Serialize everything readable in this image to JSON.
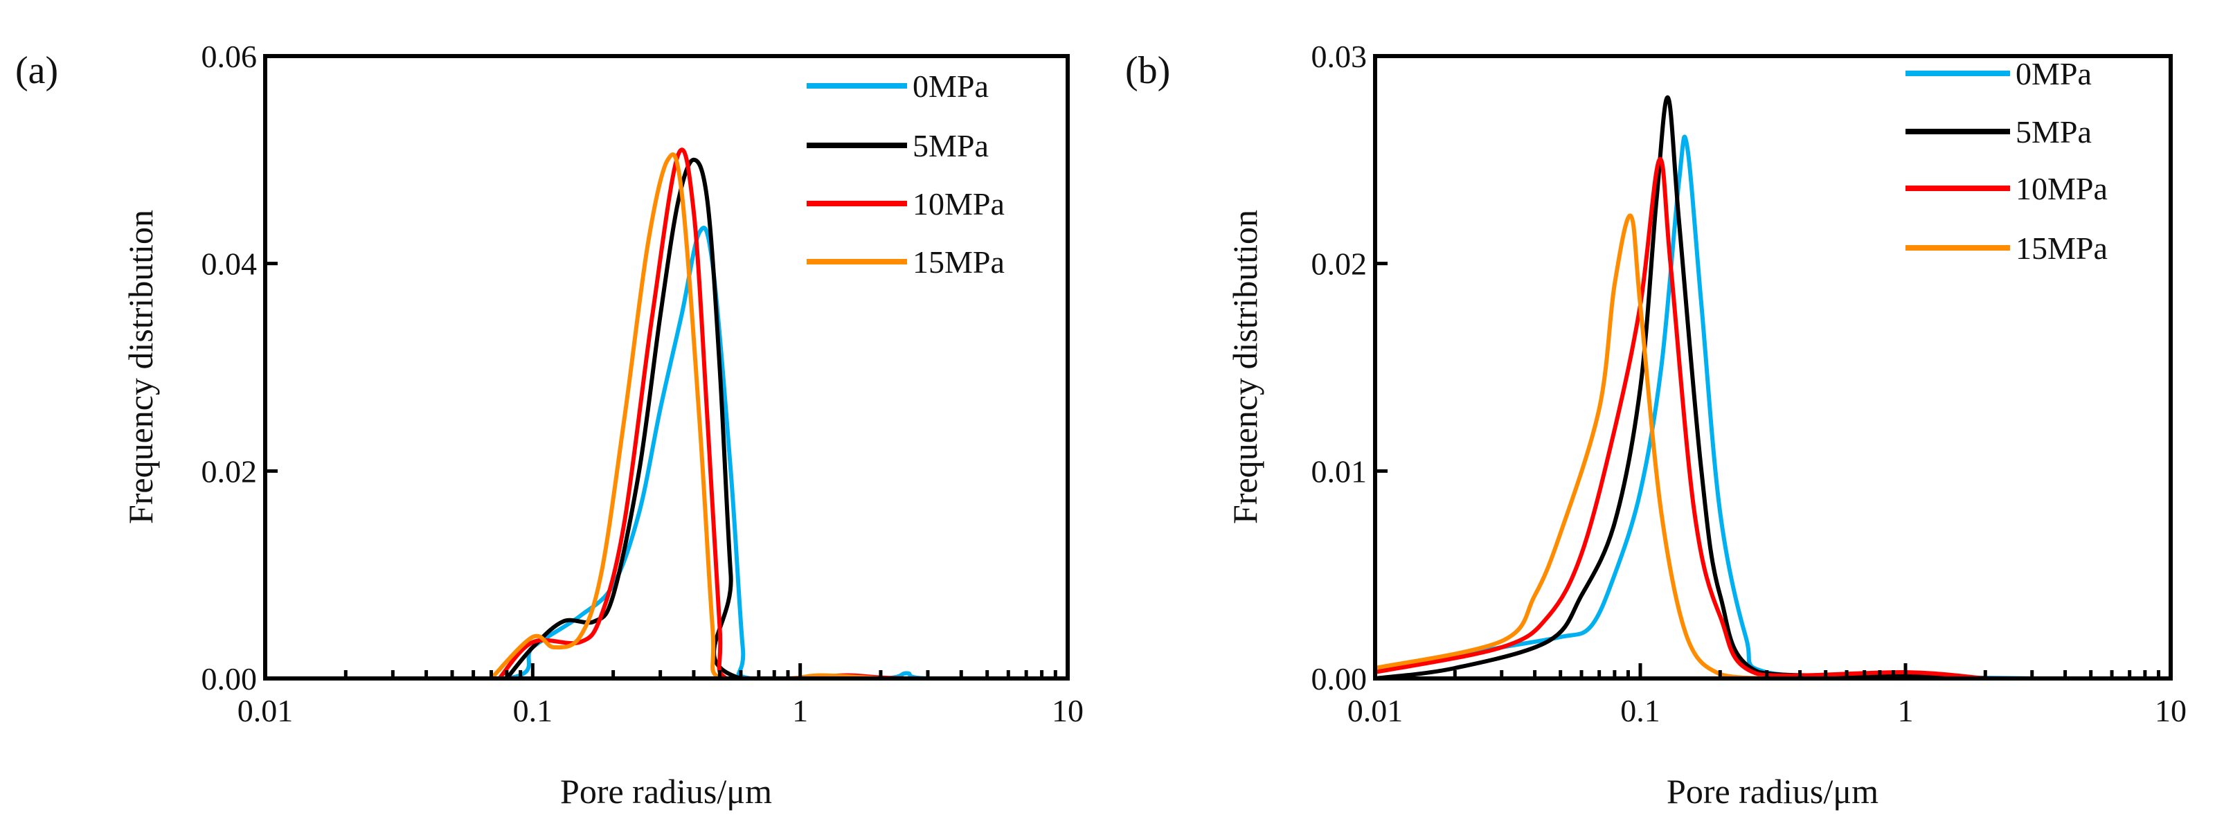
{
  "chart_data": [
    {
      "type": "line",
      "panel_label": "(a)",
      "xlabel": "Pore radius/μm",
      "ylabel": "Frequency distribution",
      "xscale": "log",
      "xlim": [
        0.01,
        10
      ],
      "ylim": [
        0,
        0.06
      ],
      "xticks": [
        "0.01",
        "0.1",
        "1",
        "10"
      ],
      "yticks": [
        "0.00",
        "0.02",
        "0.04",
        "0.06"
      ],
      "legend_position": "top-right",
      "grid": false,
      "series": [
        {
          "name": "0MPa",
          "color": "#00b0f0",
          "points": [
            [
              0.015,
              0
            ],
            [
              0.08,
              0
            ],
            [
              0.1,
              0.003
            ],
            [
              0.15,
              0.006
            ],
            [
              0.2,
              0.009
            ],
            [
              0.25,
              0.016
            ],
            [
              0.3,
              0.026
            ],
            [
              0.36,
              0.035
            ],
            [
              0.42,
              0.043
            ],
            [
              0.47,
              0.04
            ],
            [
              0.55,
              0.02
            ],
            [
              0.61,
              0.003
            ],
            [
              0.65,
              0
            ],
            [
              2.0,
              0
            ],
            [
              2.5,
              0.0005
            ],
            [
              3.0,
              0
            ],
            [
              10,
              0
            ]
          ]
        },
        {
          "name": "5MPa",
          "color": "#000000",
          "points": [
            [
              0.08,
              0
            ],
            [
              0.1,
              0.003
            ],
            [
              0.13,
              0.0055
            ],
            [
              0.17,
              0.0055
            ],
            [
              0.2,
              0.008
            ],
            [
              0.25,
              0.02
            ],
            [
              0.3,
              0.035
            ],
            [
              0.35,
              0.046
            ],
            [
              0.4,
              0.05
            ],
            [
              0.45,
              0.046
            ],
            [
              0.5,
              0.03
            ],
            [
              0.55,
              0.01
            ],
            [
              0.6,
              0
            ],
            [
              10,
              0
            ]
          ]
        },
        {
          "name": "10MPa",
          "color": "#ff0000",
          "points": [
            [
              0.075,
              0
            ],
            [
              0.1,
              0.0035
            ],
            [
              0.15,
              0.0035
            ],
            [
              0.18,
              0.006
            ],
            [
              0.22,
              0.015
            ],
            [
              0.28,
              0.035
            ],
            [
              0.35,
              0.0505
            ],
            [
              0.4,
              0.045
            ],
            [
              0.45,
              0.025
            ],
            [
              0.5,
              0.005
            ],
            [
              0.53,
              0
            ],
            [
              1.0,
              0
            ],
            [
              1.5,
              0.0003
            ],
            [
              2.5,
              0
            ],
            [
              10,
              0
            ]
          ]
        },
        {
          "name": "15MPa",
          "color": "#ff8c00",
          "points": [
            [
              0.07,
              0
            ],
            [
              0.1,
              0.004
            ],
            [
              0.12,
              0.003
            ],
            [
              0.15,
              0.004
            ],
            [
              0.18,
              0.01
            ],
            [
              0.22,
              0.025
            ],
            [
              0.27,
              0.042
            ],
            [
              0.32,
              0.05
            ],
            [
              0.36,
              0.047
            ],
            [
              0.42,
              0.025
            ],
            [
              0.47,
              0.005
            ],
            [
              0.5,
              0
            ],
            [
              0.9,
              0
            ],
            [
              1.2,
              0.0003
            ],
            [
              2.0,
              0
            ]
          ]
        }
      ]
    },
    {
      "type": "line",
      "panel_label": "(b)",
      "xlabel": "Pore radius/μm",
      "ylabel": "Frequency distribution",
      "xscale": "log",
      "xlim": [
        0.01,
        10
      ],
      "ylim": [
        0,
        0.03
      ],
      "xticks": [
        "0.01",
        "0.1",
        "1",
        "10"
      ],
      "yticks": [
        "0.00",
        "0.01",
        "0.02",
        "0.03"
      ],
      "legend_position": "top-right",
      "grid": false,
      "series": [
        {
          "name": "0MPa",
          "color": "#00b0f0",
          "points": [
            [
              0.01,
              0.0004
            ],
            [
              0.03,
              0.0015
            ],
            [
              0.05,
              0.002
            ],
            [
              0.065,
              0.0025
            ],
            [
              0.08,
              0.005
            ],
            [
              0.1,
              0.009
            ],
            [
              0.12,
              0.015
            ],
            [
              0.14,
              0.024
            ],
            [
              0.15,
              0.0257
            ],
            [
              0.17,
              0.018
            ],
            [
              0.2,
              0.008
            ],
            [
              0.25,
              0.002
            ],
            [
              0.3,
              0.0003
            ],
            [
              1.0,
              0.0001
            ],
            [
              3.0,
              0
            ]
          ]
        },
        {
          "name": "5MPa",
          "color": "#000000",
          "points": [
            [
              0.01,
              0
            ],
            [
              0.02,
              0.0005
            ],
            [
              0.045,
              0.0018
            ],
            [
              0.06,
              0.004
            ],
            [
              0.08,
              0.0075
            ],
            [
              0.1,
              0.014
            ],
            [
              0.115,
              0.023
            ],
            [
              0.127,
              0.028
            ],
            [
              0.14,
              0.022
            ],
            [
              0.17,
              0.01
            ],
            [
              0.2,
              0.004
            ],
            [
              0.28,
              0.0003
            ],
            [
              1.0,
              0.0002
            ],
            [
              2.0,
              0
            ]
          ]
        },
        {
          "name": "10MPa",
          "color": "#ff0000",
          "points": [
            [
              0.01,
              0.0003
            ],
            [
              0.03,
              0.0015
            ],
            [
              0.045,
              0.003
            ],
            [
              0.06,
              0.006
            ],
            [
              0.08,
              0.012
            ],
            [
              0.1,
              0.018
            ],
            [
              0.118,
              0.025
            ],
            [
              0.13,
              0.02
            ],
            [
              0.16,
              0.008
            ],
            [
              0.2,
              0.003
            ],
            [
              0.28,
              0.0002
            ],
            [
              1.0,
              0.0003
            ],
            [
              2.0,
              0
            ]
          ]
        },
        {
          "name": "15MPa",
          "color": "#ff8c00",
          "points": [
            [
              0.01,
              0.0005
            ],
            [
              0.03,
              0.0018
            ],
            [
              0.04,
              0.004
            ],
            [
              0.05,
              0.007
            ],
            [
              0.07,
              0.013
            ],
            [
              0.08,
              0.019
            ],
            [
              0.092,
              0.0223
            ],
            [
              0.1,
              0.018
            ],
            [
              0.12,
              0.008
            ],
            [
              0.15,
              0.002
            ],
            [
              0.2,
              0.0002
            ],
            [
              0.3,
              0
            ]
          ]
        }
      ]
    }
  ]
}
